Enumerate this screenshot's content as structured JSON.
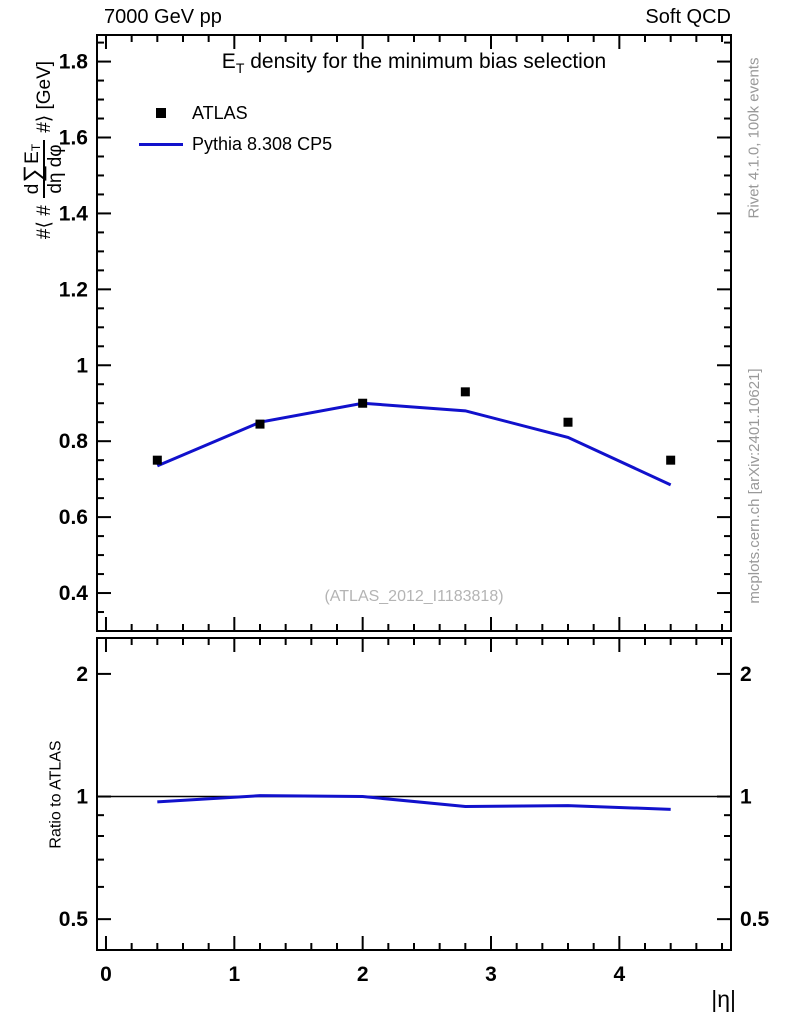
{
  "header": {
    "left_label": "7000 GeV pp",
    "right_label": "Soft QCD"
  },
  "plot": {
    "title": {
      "prefix": "E",
      "sub": "T",
      "rest": " density  for the minimum bias selection"
    },
    "watermark": "(ATLAS_2012_I1183818)",
    "xlabel": "|η|",
    "ylabel": {
      "prefix": "#⟨ #",
      "num_d": "d",
      "num_sum": "∑",
      "num_E": "E",
      "num_sub": "T",
      "den": "dη dφ",
      "suffix": "#⟩ [GeV]"
    },
    "ratio_label": "Ratio to ATLAS",
    "side_text_top": "Rivet 4.1.0,  100k events",
    "side_text_bottom": "mcplots.cern.ch [arXiv:2401.10621]"
  },
  "legend": [
    {
      "label": "ATLAS",
      "marker": "filled-square",
      "color": "#000000"
    },
    {
      "label": "Pythia 8.308 CP5",
      "marker": "line",
      "color": "#1111cc"
    }
  ],
  "colors": {
    "accent_blue": "#1111cc",
    "marker_black": "#000000",
    "side_text_gray": "#999999",
    "watermark_gray": "#b4b4b4"
  },
  "chart_data": {
    "type": "line",
    "title": "E_T density for the minimum bias selection",
    "xlabel": "|η|",
    "ylabel": "#⟨ # d∑E_T/dη dφ #⟩ [GeV]",
    "legend_position": "top-left",
    "x": [
      0.4,
      1.2,
      2.0,
      2.8,
      3.6,
      4.4
    ],
    "series": [
      {
        "name": "ATLAS",
        "type": "scatter",
        "marker": "square",
        "color": "#000000",
        "values": [
          0.75,
          0.845,
          0.9,
          0.93,
          0.85,
          0.75
        ]
      },
      {
        "name": "Pythia 8.308 CP5",
        "type": "line",
        "color": "#1111cc",
        "values": [
          0.735,
          0.85,
          0.9,
          0.88,
          0.81,
          0.685
        ]
      }
    ],
    "ratio": {
      "name": "Pythia 8.308 CP5 / ATLAS",
      "values": [
        0.97,
        1.005,
        1.0,
        0.945,
        0.95,
        0.93
      ],
      "reference": 1.0
    },
    "x_axis": {
      "xlim": [
        -0.07,
        4.87
      ],
      "xticks": [
        0,
        1,
        2,
        3,
        4
      ],
      "xtick_labels": [
        "0",
        "1",
        "2",
        "3",
        "4"
      ],
      "minor_step": 0.2
    },
    "main_axis": {
      "scale": "linear",
      "ylim": [
        0.3,
        1.87
      ],
      "yticks": [
        0.4,
        0.6,
        0.8,
        1,
        1.2,
        1.4,
        1.6,
        1.8
      ],
      "ytick_labels": [
        "0.4",
        "0.6",
        "0.8",
        "1",
        "1.2",
        "1.4",
        "1.6",
        "1.8"
      ],
      "minor_step": 0.05
    },
    "ratio_axis": {
      "scale": "log",
      "ylim": [
        0.42,
        2.45
      ],
      "yticks": [
        0.5,
        1,
        2
      ],
      "ytick_labels": [
        "0.5",
        "1",
        "2"
      ],
      "yticks_minor": [
        0.6,
        0.7,
        0.8,
        0.9
      ]
    },
    "grid": false
  }
}
